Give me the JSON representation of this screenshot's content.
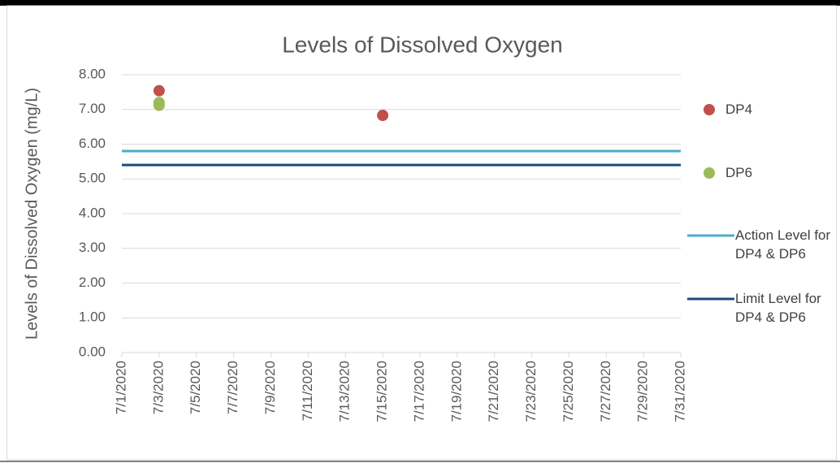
{
  "chart_data": {
    "type": "scatter",
    "title": "Levels of Dissolved Oxygen",
    "y_label": "Levels of Dissolved Oxygen (mg/L)",
    "xlim": [
      "7/1/2020",
      "7/31/2020"
    ],
    "xticks": [
      "7/1/2020",
      "7/3/2020",
      "7/5/2020",
      "7/7/2020",
      "7/9/2020",
      "7/11/2020",
      "7/13/2020",
      "7/15/2020",
      "7/17/2020",
      "7/19/2020",
      "7/21/2020",
      "7/23/2020",
      "7/25/2020",
      "7/27/2020",
      "7/29/2020",
      "7/31/2020"
    ],
    "ylim": [
      0,
      8
    ],
    "yticks": [
      {
        "value": 0,
        "label": "0.00"
      },
      {
        "value": 1,
        "label": "1.00"
      },
      {
        "value": 2,
        "label": "2.00"
      },
      {
        "value": 3,
        "label": "3.00"
      },
      {
        "value": 4,
        "label": "4.00"
      },
      {
        "value": 5,
        "label": "5.00"
      },
      {
        "value": 6,
        "label": "6.00"
      },
      {
        "value": 7,
        "label": "7.00"
      },
      {
        "value": 8,
        "label": "8.00"
      }
    ],
    "grid": true,
    "legend": "right",
    "series": [
      {
        "name": "DP4",
        "kind": "marker",
        "color": "#c0504d",
        "x": [
          "7/3/2020",
          "7/15/2020"
        ],
        "values": [
          7.54,
          6.83
        ]
      },
      {
        "name": "DP6",
        "kind": "marker",
        "color": "#9bbb59",
        "x": [
          "7/3/2020",
          "7/3/2020"
        ],
        "values": [
          7.2,
          7.12
        ]
      },
      {
        "name": "Action Level for DP4 & DP6",
        "kind": "line",
        "color": "#4bacc6",
        "x": [
          "7/1/2020",
          "7/31/2020"
        ],
        "values": [
          5.8,
          5.8
        ]
      },
      {
        "name": "Limit Level for DP4 & DP6",
        "kind": "line",
        "color": "#1f497d",
        "x": [
          "7/1/2020",
          "7/31/2020"
        ],
        "values": [
          5.4,
          5.4
        ]
      }
    ]
  }
}
